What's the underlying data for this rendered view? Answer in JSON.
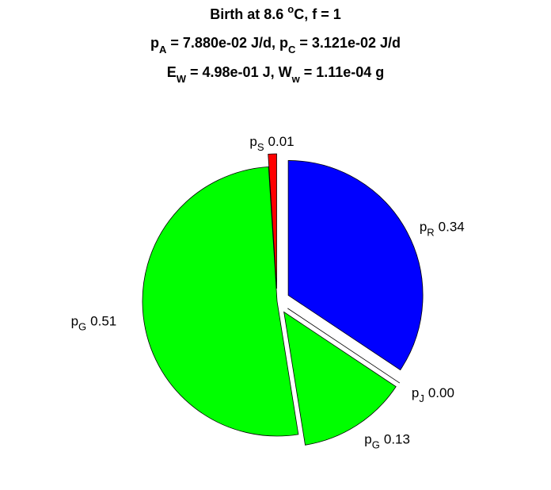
{
  "chart_data": {
    "type": "pie",
    "title": [
      [
        "Birth at 8.6 ",
        {
          "sup": "o"
        },
        "C, f = 1"
      ],
      [
        "p",
        {
          "sub": "A"
        },
        " = 7.880e-02 J/d, p",
        {
          "sub": "C"
        },
        " = 3.121e-02 J/d"
      ],
      [
        "E",
        {
          "sub": "W"
        },
        " = 4.98e-01 J, W",
        {
          "sub": "w"
        },
        " = 1.11e-04 g"
      ]
    ],
    "categories": [
      {
        "text": "p",
        "sub": "R"
      },
      {
        "text": "p",
        "sub": "J"
      },
      {
        "text": "p",
        "sub": "G"
      },
      {
        "text": "p",
        "sub": "G"
      },
      {
        "text": "p",
        "sub": "S"
      }
    ],
    "values": [
      0.34,
      0.0,
      0.13,
      0.51,
      0.01
    ],
    "value_labels": [
      "0.34",
      "0.00",
      "0.13",
      "0.51",
      "0.01"
    ],
    "colors": [
      "#0000ff",
      "#ff00ff",
      "#00ff00",
      "#00ff00",
      "#ff0000"
    ],
    "explode": [
      true,
      true,
      true,
      false,
      true
    ]
  }
}
